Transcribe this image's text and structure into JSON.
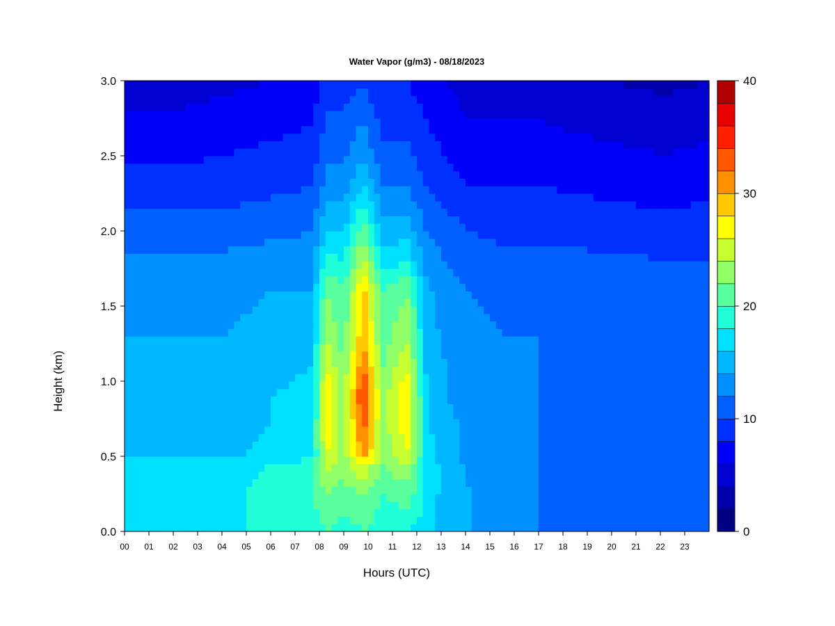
{
  "chart_data": {
    "type": "heatmap",
    "title": "Water Vapor (g/m3) - 08/18/2023",
    "xlabel": "Hours (UTC)",
    "ylabel": "Height (km)",
    "x_ticks": [
      "00",
      "01",
      "02",
      "03",
      "04",
      "05",
      "06",
      "07",
      "08",
      "09",
      "10",
      "11",
      "12",
      "13",
      "14",
      "15",
      "16",
      "17",
      "18",
      "19",
      "20",
      "21",
      "22",
      "23"
    ],
    "xlim": [
      0,
      24
    ],
    "y_ticks": [
      "0.0",
      "0.5",
      "1.0",
      "1.5",
      "2.0",
      "2.5",
      "3.0"
    ],
    "ylim": [
      0,
      3
    ],
    "colorbar": {
      "ticks": [
        "0",
        "10",
        "20",
        "30",
        "40"
      ],
      "range": [
        0,
        40
      ],
      "step": 2,
      "colors": [
        "#000080",
        "#0000a8",
        "#0000d0",
        "#0000f8",
        "#0030ff",
        "#0060ff",
        "#0090ff",
        "#00b8ff",
        "#00e0ff",
        "#20ffd8",
        "#58ff9c",
        "#90ff68",
        "#c8ff30",
        "#ffff00",
        "#ffc800",
        "#ff9000",
        "#ff5800",
        "#ff2000",
        "#e80000",
        "#b00000",
        "#800000"
      ]
    },
    "profiles_hours": [
      0,
      1,
      2,
      4,
      6,
      7.7,
      8.3,
      9,
      9.8,
      10.6,
      11.6,
      12.4,
      13.2,
      14.2,
      15.5,
      17,
      20,
      22.2,
      23.9
    ],
    "profiles_height_km": [
      0,
      0.25,
      0.45,
      0.5,
      0.7,
      0.9,
      1.1,
      1.3,
      1.6,
      1.8,
      2.0,
      2.3,
      2.6,
      3.0
    ],
    "profiles_values": [
      [
        17,
        17,
        17,
        15.5,
        15,
        15,
        14.5,
        14,
        13.5,
        12.5,
        11,
        9,
        7,
        5
      ],
      [
        17,
        17,
        16.5,
        15.5,
        15,
        15,
        14.5,
        14,
        13.5,
        12.5,
        11,
        9,
        7,
        5
      ],
      [
        17,
        17,
        16.5,
        15.5,
        15,
        15,
        14.5,
        14,
        13.5,
        12.5,
        11,
        9,
        7,
        5
      ],
      [
        17.5,
        17.5,
        17,
        15.5,
        15,
        15,
        14.5,
        14,
        13.5,
        12.5,
        11,
        9,
        7.5,
        5.5
      ],
      [
        18.5,
        18.5,
        18,
        16.5,
        16,
        16,
        15.5,
        14.5,
        14,
        13,
        11.5,
        9.5,
        8,
        6
      ],
      [
        19.5,
        19.5,
        19,
        17.5,
        17,
        16.5,
        16,
        15,
        14,
        13,
        12,
        10,
        8.5,
        6.5
      ],
      [
        20,
        22,
        25,
        26,
        27.5,
        28,
        26,
        24,
        22,
        19,
        16,
        13,
        11,
        9
      ],
      [
        19,
        21,
        23,
        23,
        23,
        23,
        22,
        21,
        20,
        18,
        16,
        13,
        11,
        9
      ],
      [
        20,
        22,
        26,
        31,
        33,
        35,
        32,
        30,
        29,
        25,
        21,
        16,
        13,
        10
      ],
      [
        19,
        20,
        22,
        23,
        23,
        23,
        22,
        21,
        20,
        17,
        15,
        12,
        10,
        8
      ],
      [
        18,
        21,
        24,
        26,
        27,
        28,
        26,
        24,
        22,
        18,
        15,
        12,
        10,
        8
      ],
      [
        17,
        17.5,
        17.5,
        17,
        16.5,
        16,
        15.5,
        15,
        14.5,
        13,
        12,
        10,
        8.5,
        7
      ],
      [
        15,
        15,
        15,
        14.5,
        14.5,
        14,
        14,
        13.5,
        13,
        12,
        11,
        9,
        7.5,
        6
      ],
      [
        14,
        14,
        13.5,
        13.5,
        13.5,
        13,
        13,
        12.5,
        12,
        11,
        10,
        8,
        6.5,
        5
      ],
      [
        13,
        13,
        13,
        13,
        13,
        13,
        12.5,
        12,
        11.5,
        10.5,
        9.5,
        8,
        6.5,
        5
      ],
      [
        12,
        12,
        12,
        12,
        12,
        12,
        12,
        12,
        11.5,
        10.5,
        9.5,
        8,
        6.5,
        5
      ],
      [
        11,
        11,
        11,
        10.5,
        11,
        11.5,
        11.5,
        11.5,
        11.5,
        10.5,
        9,
        7.5,
        6,
        4
      ],
      [
        11,
        11,
        11,
        10.5,
        10.5,
        11,
        11,
        11,
        11,
        10,
        9,
        7,
        5.5,
        3.5
      ],
      [
        10,
        10,
        10,
        10,
        10,
        10.5,
        10.5,
        10.5,
        10.5,
        10,
        9,
        7.5,
        6,
        4
      ]
    ]
  }
}
